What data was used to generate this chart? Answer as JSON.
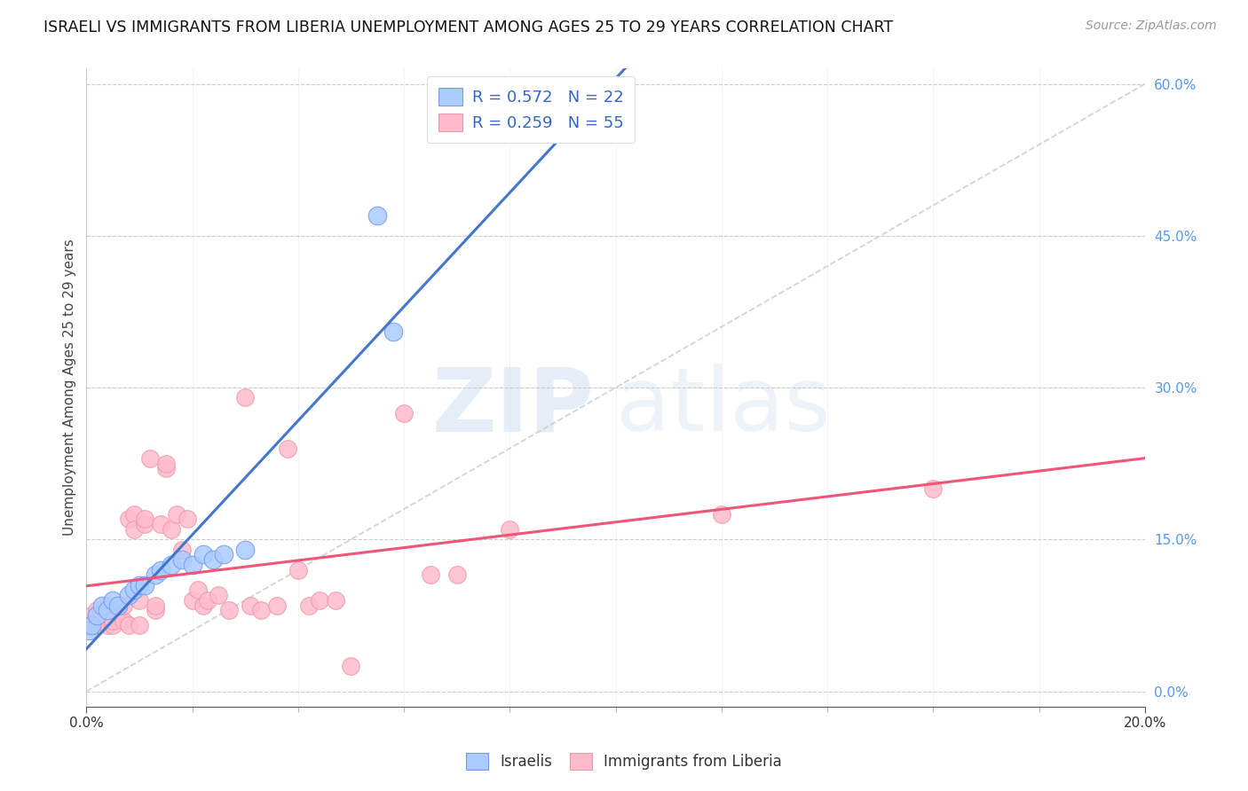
{
  "title": "ISRAELI VS IMMIGRANTS FROM LIBERIA UNEMPLOYMENT AMONG AGES 25 TO 29 YEARS CORRELATION CHART",
  "source": "Source: ZipAtlas.com",
  "ylabel_left": "Unemployment Among Ages 25 to 29 years",
  "legend_label1": "Israelis",
  "legend_label2": "Immigrants from Liberia",
  "r1": 0.572,
  "n1": 22,
  "r2": 0.259,
  "n2": 55,
  "color_blue_fill": "#aaccff",
  "color_blue_edge": "#7799ee",
  "color_pink_fill": "#ffbbcc",
  "color_pink_edge": "#ee99aa",
  "color_blue_line": "#4477cc",
  "color_pink_line": "#ee5577",
  "color_dashed": "#cccccc",
  "color_right_tick": "#5599ee",
  "xmin": 0.0,
  "xmax": 0.2,
  "ymin": -0.015,
  "ymax": 0.615,
  "watermark_zip": "ZIP",
  "watermark_atlas": "atlas",
  "israelis_x": [
    0.0005,
    0.001,
    0.002,
    0.003,
    0.004,
    0.005,
    0.006,
    0.008,
    0.009,
    0.01,
    0.011,
    0.013,
    0.014,
    0.016,
    0.018,
    0.02,
    0.022,
    0.024,
    0.026,
    0.03,
    0.055,
    0.058
  ],
  "israelis_y": [
    0.06,
    0.065,
    0.075,
    0.085,
    0.08,
    0.09,
    0.085,
    0.095,
    0.1,
    0.105,
    0.105,
    0.115,
    0.12,
    0.125,
    0.13,
    0.125,
    0.135,
    0.13,
    0.135,
    0.14,
    0.47,
    0.355
  ],
  "liberia_x": [
    0.0005,
    0.001,
    0.001,
    0.002,
    0.002,
    0.003,
    0.003,
    0.004,
    0.004,
    0.005,
    0.005,
    0.006,
    0.006,
    0.007,
    0.007,
    0.008,
    0.008,
    0.009,
    0.009,
    0.01,
    0.01,
    0.011,
    0.011,
    0.012,
    0.013,
    0.013,
    0.014,
    0.015,
    0.015,
    0.016,
    0.017,
    0.018,
    0.019,
    0.02,
    0.021,
    0.022,
    0.023,
    0.025,
    0.027,
    0.03,
    0.031,
    0.033,
    0.036,
    0.038,
    0.04,
    0.042,
    0.044,
    0.047,
    0.05,
    0.06,
    0.065,
    0.07,
    0.08,
    0.12,
    0.16
  ],
  "liberia_y": [
    0.065,
    0.07,
    0.075,
    0.065,
    0.08,
    0.07,
    0.075,
    0.065,
    0.085,
    0.065,
    0.07,
    0.08,
    0.085,
    0.07,
    0.085,
    0.065,
    0.17,
    0.175,
    0.16,
    0.065,
    0.09,
    0.165,
    0.17,
    0.23,
    0.08,
    0.085,
    0.165,
    0.22,
    0.225,
    0.16,
    0.175,
    0.14,
    0.17,
    0.09,
    0.1,
    0.085,
    0.09,
    0.095,
    0.08,
    0.29,
    0.085,
    0.08,
    0.085,
    0.24,
    0.12,
    0.085,
    0.09,
    0.09,
    0.025,
    0.275,
    0.115,
    0.115,
    0.16,
    0.175,
    0.2
  ],
  "y_ticks_right": [
    0.0,
    0.15,
    0.3,
    0.45,
    0.6
  ],
  "x_ticks_minor": [
    0.0,
    0.02,
    0.04,
    0.06,
    0.08,
    0.1,
    0.12,
    0.14,
    0.16,
    0.18,
    0.2
  ]
}
